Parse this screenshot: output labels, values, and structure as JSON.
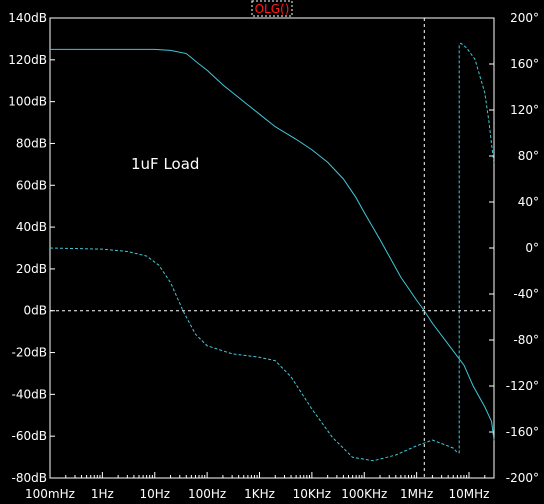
{
  "chart_data": {
    "type": "line",
    "title": "",
    "annotation": "1uF Load",
    "legend": {
      "label": "OLG()",
      "position": "top-center",
      "color": "#ff1a1a"
    },
    "x_axis": {
      "scale": "log",
      "unit": "Hz",
      "range": [
        0.1,
        30000000
      ],
      "tick_values": [
        0.1,
        1,
        10,
        100,
        1000,
        10000,
        100000,
        1000000,
        10000000
      ],
      "tick_labels": [
        "100mHz",
        "1Hz",
        "10Hz",
        "100Hz",
        "1KHz",
        "10KHz",
        "100KHz",
        "1MHz",
        "10MHz"
      ]
    },
    "y_left": {
      "unit": "dB",
      "range": [
        -80,
        140
      ],
      "tick_values": [
        140,
        120,
        100,
        80,
        60,
        40,
        20,
        0,
        -20,
        -40,
        -60,
        -80
      ],
      "tick_labels": [
        "140dB",
        "120dB",
        "100dB",
        "80dB",
        "60dB",
        "40dB",
        "20dB",
        "0dB",
        "-20dB",
        "-40dB",
        "-60dB",
        "-80dB"
      ]
    },
    "y_right": {
      "unit": "degrees",
      "range": [
        -200,
        200
      ],
      "tick_values": [
        200,
        160,
        120,
        80,
        40,
        0,
        -40,
        -80,
        -120,
        -160,
        -200
      ],
      "tick_labels": [
        "200°",
        "160°",
        "120°",
        "80°",
        "40°",
        "0°",
        "-40°",
        "-80°",
        "-120°",
        "-160°",
        "-200°"
      ]
    },
    "crosshair": {
      "x": 1400000,
      "y": 0
    },
    "grid": false,
    "series": [
      {
        "axis": "left",
        "style": "solid",
        "color": "#40c8d8",
        "points": [
          [
            0.1,
            125
          ],
          [
            1,
            125
          ],
          [
            10,
            125
          ],
          [
            20,
            124.5
          ],
          [
            40,
            123
          ],
          [
            70,
            118
          ],
          [
            100,
            115
          ],
          [
            200,
            108
          ],
          [
            500,
            100
          ],
          [
            1000,
            94
          ],
          [
            2000,
            88
          ],
          [
            5000,
            82
          ],
          [
            10000,
            77
          ],
          [
            20000,
            71
          ],
          [
            40000,
            63
          ],
          [
            70000,
            54
          ],
          [
            100000,
            47
          ],
          [
            200000,
            34
          ],
          [
            500000,
            16
          ],
          [
            1000000,
            5
          ],
          [
            1400000,
            0
          ],
          [
            2000000,
            -6
          ],
          [
            4000000,
            -16
          ],
          [
            8000000,
            -26
          ],
          [
            12000000,
            -36
          ],
          [
            20000000,
            -46
          ],
          [
            27000000,
            -53
          ],
          [
            30000000,
            -62
          ]
        ]
      },
      {
        "axis": "right",
        "style": "dashed",
        "color": "#40c8d8",
        "points": [
          [
            0.1,
            0
          ],
          [
            1,
            -1
          ],
          [
            3,
            -3
          ],
          [
            7,
            -7
          ],
          [
            12,
            -15
          ],
          [
            20,
            -30
          ],
          [
            35,
            -55
          ],
          [
            60,
            -75
          ],
          [
            100,
            -85
          ],
          [
            300,
            -92
          ],
          [
            1000,
            -95
          ],
          [
            2000,
            -98
          ],
          [
            4000,
            -112
          ],
          [
            10000,
            -140
          ],
          [
            25000,
            -165
          ],
          [
            60000,
            -182
          ],
          [
            150000,
            -185
          ],
          [
            400000,
            -180
          ],
          [
            1000000,
            -172
          ],
          [
            2000000,
            -167
          ],
          [
            3000000,
            -170
          ],
          [
            5000000,
            -174
          ],
          [
            6000000,
            -178
          ],
          [
            6500000,
            -178
          ],
          [
            6500000,
            177
          ],
          [
            7000000,
            178
          ],
          [
            9000000,
            174
          ],
          [
            13000000,
            164
          ],
          [
            20000000,
            135
          ],
          [
            24000000,
            110
          ],
          [
            27000000,
            90
          ],
          [
            30000000,
            73
          ]
        ]
      }
    ]
  }
}
